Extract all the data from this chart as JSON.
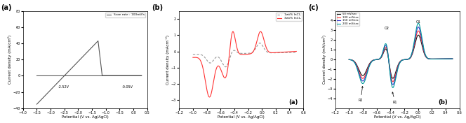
{
  "panel_a": {
    "label": "(a)",
    "xlabel": "Potential (V vs. Ag/AgCl)",
    "ylabel": "Current density (mA/cm²)",
    "xlim": [
      -4.0,
      0.5
    ],
    "ylim": [
      -40,
      80
    ],
    "yticks": [
      -40,
      -20,
      0,
      20,
      40,
      60,
      80
    ],
    "xticks": [
      -4.0,
      -3.5,
      -3.0,
      -2.5,
      -2.0,
      -1.5,
      -1.0,
      -0.5,
      0.0,
      0.5
    ],
    "legend_label": "Scan rate : 100mV/s",
    "annot1": "-2.52V",
    "annot2": "-0.05V",
    "line_color": "#555555"
  },
  "panel_b": {
    "label": "(b)",
    "xlabel": "Potential (V vs. Ag/AgCl)",
    "ylabel": "Current density (mAcm⁻²)",
    "xlim": [
      -1.2,
      0.6
    ],
    "ylim": [
      -3.5,
      2.5
    ],
    "yticks": [
      -3,
      -2,
      -1,
      0,
      1,
      2
    ],
    "legend_labels": [
      "1wt% InCl₃",
      "3wt% InCl₃"
    ],
    "annot_label": "(a)",
    "line1_color": "#999999",
    "line2_color": "#ff3333"
  },
  "panel_c": {
    "label": "(c)",
    "xlabel": "Potential (V vs. Ag/AgCl)",
    "ylabel": "Current density (mA/cm²)",
    "xlim": [
      -1.2,
      0.6
    ],
    "ylim": [
      -5,
      5
    ],
    "yticks": [
      -4,
      -3,
      -2,
      -1,
      0,
      1,
      2,
      3,
      4
    ],
    "legend_labels": [
      "50 mV/sec",
      "100 m/Vsec",
      "150 mV/sec",
      "200 mV/sec"
    ],
    "legend_colors": [
      "#111111",
      "#ff3333",
      "#3333cc",
      "#009999"
    ],
    "annot_O1": "O1",
    "annot_O2": "O2",
    "annot_R1": "R1",
    "annot_R2": "R2",
    "annot_label": "(b)"
  }
}
